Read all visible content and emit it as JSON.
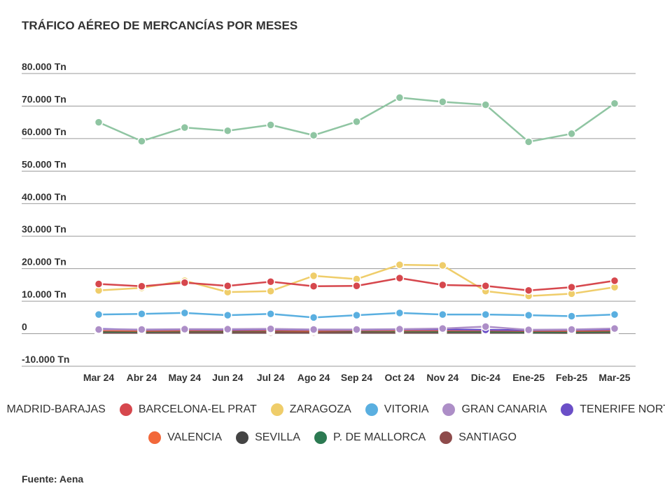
{
  "chart_data": {
    "type": "line",
    "title": "TRÁFICO AÉREO DE MERCANCÍAS POR MESES",
    "source": "Fuente: Aena",
    "categories": [
      "Mar 24",
      "Abr 24",
      "May 24",
      "Jun 24",
      "Jul 24",
      "Ago 24",
      "Sep 24",
      "Oct 24",
      "Nov 24",
      "Dic-24",
      "Ene-25",
      "Feb-25",
      "Mar-25"
    ],
    "ylim": [
      -10000,
      80000
    ],
    "yticks": [
      {
        "value": 80000,
        "label": "80.000 Tn"
      },
      {
        "value": 70000,
        "label": "70.000 Tn"
      },
      {
        "value": 60000,
        "label": "60.000 Tn"
      },
      {
        "value": 50000,
        "label": "50.000 Tn"
      },
      {
        "value": 40000,
        "label": "40.000 Tn"
      },
      {
        "value": 30000,
        "label": "30.000 Tn"
      },
      {
        "value": 20000,
        "label": "20.000 Tn"
      },
      {
        "value": 10000,
        "label": "10.000 Tn"
      },
      {
        "value": 0,
        "label": "0"
      },
      {
        "value": -10000,
        "label": "-10.000 Tn"
      }
    ],
    "series": [
      {
        "name": "MADRID-BARAJAS",
        "color": "#8fc5a2",
        "values": [
          65000,
          59200,
          63400,
          62400,
          64200,
          61000,
          65200,
          72600,
          71300,
          70400,
          59000,
          61500,
          70800
        ]
      },
      {
        "name": "BARCELONA-EL PRAT",
        "color": "#d6474d",
        "values": [
          15300,
          14600,
          15700,
          14700,
          16000,
          14600,
          14700,
          17100,
          15000,
          14700,
          13300,
          14300,
          16300
        ]
      },
      {
        "name": "ZARAGOZA",
        "color": "#efcd6a",
        "values": [
          13300,
          14100,
          16300,
          12800,
          13100,
          17800,
          16800,
          21200,
          21000,
          13100,
          11600,
          12300,
          14300
        ]
      },
      {
        "name": "VITORIA",
        "color": "#5aafe0",
        "values": [
          5900,
          6100,
          6400,
          5700,
          6100,
          5000,
          5700,
          6400,
          5900,
          5900,
          5700,
          5400,
          5900
        ]
      },
      {
        "name": "GRAN CANARIA",
        "color": "#ad8ec7",
        "values": [
          1300,
          1300,
          1400,
          1400,
          1500,
          1300,
          1300,
          1400,
          1600,
          2200,
          1200,
          1300,
          1600
        ]
      },
      {
        "name": "TENERIFE NORTE",
        "color": "#6b4fc7",
        "values": [
          1500,
          1200,
          1300,
          1200,
          1300,
          1200,
          1200,
          1300,
          1300,
          1200,
          1100,
          1200,
          1300
        ]
      },
      {
        "name": "VALENCIA",
        "color": "#f2683a",
        "values": [
          1000,
          900,
          1000,
          1000,
          1000,
          900,
          1000,
          1000,
          1000,
          1000,
          900,
          900,
          1000
        ]
      },
      {
        "name": "SEVILLA",
        "color": "#444444",
        "values": [
          900,
          800,
          900,
          900,
          900,
          800,
          900,
          1000,
          900,
          900,
          800,
          800,
          900
        ]
      },
      {
        "name": "P. DE MALLORCA",
        "color": "#2c7a52",
        "values": [
          600,
          600,
          700,
          700,
          800,
          800,
          700,
          700,
          600,
          600,
          500,
          500,
          600
        ]
      },
      {
        "name": "SANTIAGO",
        "color": "#8e4b4b",
        "values": [
          400,
          400,
          400,
          400,
          400,
          400,
          400,
          400,
          400,
          400,
          400,
          300,
          400
        ]
      }
    ]
  }
}
